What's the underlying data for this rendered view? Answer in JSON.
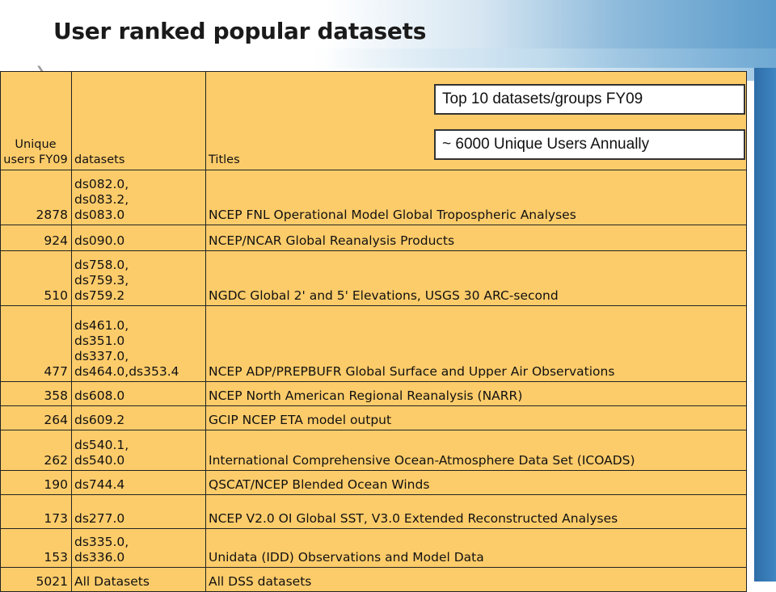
{
  "slide": {
    "title": "User ranked popular datasets"
  },
  "callouts": {
    "top": "Top 10 datasets/groups FY09",
    "bottom": "~ 6000 Unique Users Annually"
  },
  "table": {
    "headers": {
      "users": "Unique users FY09",
      "datasets": "datasets",
      "titles": "Titles"
    },
    "rows": [
      {
        "users": "2878",
        "datasets": [
          "ds082.0,",
          "ds083.2,",
          "ds083.0"
        ],
        "title": "NCEP FNL Operational Model Global Tropospheric Analyses"
      },
      {
        "users": "924",
        "datasets": [
          "ds090.0"
        ],
        "title": "NCEP/NCAR Global Reanalysis Products"
      },
      {
        "users": "510",
        "datasets": [
          "ds758.0,",
          "ds759.3,",
          "ds759.2"
        ],
        "title": "NGDC Global 2' and 5' Elevations, USGS 30 ARC-second"
      },
      {
        "users": "477",
        "datasets": [
          "ds461.0,",
          "ds351.0",
          "ds337.0,",
          "ds464.0,ds353.4"
        ],
        "title": "NCEP ADP/PREPBUFR Global Surface and Upper Air Observations"
      },
      {
        "users": "358",
        "datasets": [
          "ds608.0"
        ],
        "title": "NCEP North American Regional Reanalysis (NARR)"
      },
      {
        "users": "264",
        "datasets": [
          "ds609.2"
        ],
        "title": "GCIP NCEP ETA model output"
      },
      {
        "users": "262",
        "datasets": [
          "ds540.1,",
          "ds540.0"
        ],
        "title": "International Comprehensive Ocean-Atmosphere Data Set (ICOADS)"
      },
      {
        "users": "190",
        "datasets": [
          "ds744.4"
        ],
        "title": "QSCAT/NCEP Blended Ocean Winds"
      },
      {
        "users": "173",
        "datasets": [
          "ds277.0"
        ],
        "title": "NCEP V2.0 OI Global SST, V3.0 Extended Reconstructed Analyses"
      },
      {
        "users": "153",
        "datasets": [
          "ds335.0,",
          "ds336.0"
        ],
        "title": "Unidata (IDD) Observations and Model Data"
      },
      {
        "users": "5021",
        "datasets": [
          "All Datasets"
        ],
        "title": "All DSS datasets"
      }
    ]
  }
}
